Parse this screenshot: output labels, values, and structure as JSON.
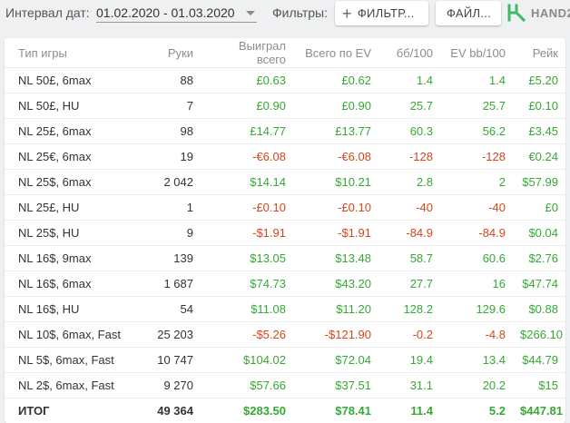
{
  "toolbar": {
    "interval_label": "Интервал дат:",
    "date_range": "01.02.2020 - 01.03.2020",
    "filters_label": "Фильтры:",
    "filter_button": "ФИЛЬТР...",
    "file_button": "ФАЙЛ...",
    "logo_text": "HAND2"
  },
  "table": {
    "columns": [
      "Тип игры",
      "Руки",
      "Выиграл всего",
      "Всего по EV",
      "бб/100",
      "EV bb/100",
      "Рейк"
    ],
    "rows": [
      {
        "game": "NL 50£, 6max",
        "hands": "88",
        "won": "£0.63",
        "ev": "£0.62",
        "bb100": "1.4",
        "evbb100": "1.4",
        "rake": "£5.20",
        "signs": [
          "pos",
          "pos",
          "pos",
          "pos",
          "pos"
        ]
      },
      {
        "game": "NL 50£, HU",
        "hands": "7",
        "won": "£0.90",
        "ev": "£0.90",
        "bb100": "25.7",
        "evbb100": "25.7",
        "rake": "£0.10",
        "signs": [
          "pos",
          "pos",
          "pos",
          "pos",
          "pos"
        ]
      },
      {
        "game": "NL 25£, 6max",
        "hands": "98",
        "won": "£14.77",
        "ev": "£13.77",
        "bb100": "60.3",
        "evbb100": "56.2",
        "rake": "£3.45",
        "signs": [
          "pos",
          "pos",
          "pos",
          "pos",
          "pos"
        ]
      },
      {
        "game": "NL 25€, 6max",
        "hands": "19",
        "won": "-€6.08",
        "ev": "-€6.08",
        "bb100": "-128",
        "evbb100": "-128",
        "rake": "€0.24",
        "signs": [
          "neg",
          "neg",
          "neg",
          "neg",
          "pos"
        ]
      },
      {
        "game": "NL 25$, 6max",
        "hands": "2 042",
        "won": "$14.14",
        "ev": "$10.21",
        "bb100": "2.8",
        "evbb100": "2",
        "rake": "$57.99",
        "signs": [
          "pos",
          "pos",
          "pos",
          "pos",
          "pos"
        ]
      },
      {
        "game": "NL 25£, HU",
        "hands": "1",
        "won": "-£0.10",
        "ev": "-£0.10",
        "bb100": "-40",
        "evbb100": "-40",
        "rake": "£0",
        "signs": [
          "neg",
          "neg",
          "neg",
          "neg",
          "pos"
        ]
      },
      {
        "game": "NL 25$, HU",
        "hands": "9",
        "won": "-$1.91",
        "ev": "-$1.91",
        "bb100": "-84.9",
        "evbb100": "-84.9",
        "rake": "$0.04",
        "signs": [
          "neg",
          "neg",
          "neg",
          "neg",
          "pos"
        ]
      },
      {
        "game": "NL 16$, 9max",
        "hands": "139",
        "won": "$13.05",
        "ev": "$13.48",
        "bb100": "58.7",
        "evbb100": "60.6",
        "rake": "$2.76",
        "signs": [
          "pos",
          "pos",
          "pos",
          "pos",
          "pos"
        ]
      },
      {
        "game": "NL 16$, 6max",
        "hands": "1 687",
        "won": "$74.73",
        "ev": "$43.20",
        "bb100": "27.7",
        "evbb100": "16",
        "rake": "$47.74",
        "signs": [
          "pos",
          "pos",
          "pos",
          "pos",
          "pos"
        ]
      },
      {
        "game": "NL 16$, HU",
        "hands": "54",
        "won": "$11.08",
        "ev": "$11.20",
        "bb100": "128.2",
        "evbb100": "129.6",
        "rake": "$0.88",
        "signs": [
          "pos",
          "pos",
          "pos",
          "pos",
          "pos"
        ]
      },
      {
        "game": "NL 10$, 6max, Fast",
        "hands": "25 203",
        "won": "-$5.26",
        "ev": "-$121.90",
        "bb100": "-0.2",
        "evbb100": "-4.8",
        "rake": "$266.10",
        "signs": [
          "neg",
          "neg",
          "neg",
          "neg",
          "pos"
        ]
      },
      {
        "game": "NL 5$, 6max, Fast",
        "hands": "10 747",
        "won": "$104.02",
        "ev": "$72.04",
        "bb100": "19.4",
        "evbb100": "13.4",
        "rake": "$44.79",
        "signs": [
          "pos",
          "pos",
          "pos",
          "pos",
          "pos"
        ]
      },
      {
        "game": "NL 2$, 6max, Fast",
        "hands": "9 270",
        "won": "$57.66",
        "ev": "$37.51",
        "bb100": "31.1",
        "evbb100": "20.2",
        "rake": "$15",
        "signs": [
          "pos",
          "pos",
          "pos",
          "pos",
          "pos"
        ]
      }
    ],
    "total": {
      "game": "ИТОГ",
      "hands": "49 364",
      "won": "$283.50",
      "ev": "$78.41",
      "bb100": "11.4",
      "evbb100": "5.2",
      "rake": "$447.81",
      "signs": [
        "pos",
        "pos",
        "pos",
        "pos",
        "pos"
      ]
    }
  },
  "colors": {
    "positive": "#36a834",
    "negative": "#d4461c",
    "logo_green": "#3dbb6b"
  },
  "icons": {
    "date_dropdown": "caret-down-icon",
    "filter_add": "plus-icon",
    "logo": "hand2note-logo-icon"
  }
}
